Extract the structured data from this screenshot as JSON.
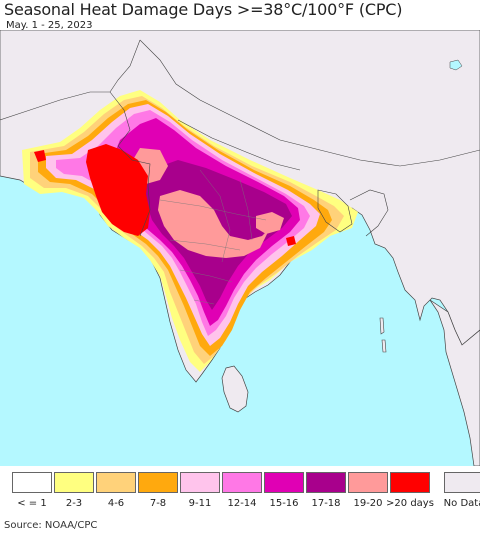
{
  "title": "Seasonal Heat Damage Days >=38°C/100°F (CPC)",
  "subtitle": "May. 1 - 25, 2023",
  "source": "Source: NOAA/CPC",
  "colors": {
    "ocean": "#b4f8ff",
    "land_no_data": "#efeaf0",
    "border": "#444444"
  },
  "legend": [
    {
      "label": "< = 1",
      "color": "#ffffff"
    },
    {
      "label": "2-3",
      "color": "#ffff80"
    },
    {
      "label": "4-6",
      "color": "#ffd27a"
    },
    {
      "label": "7-8",
      "color": "#ffa90e"
    },
    {
      "label": "9-11",
      "color": "#ffc4ec"
    },
    {
      "label": "12-14",
      "color": "#ff78e6"
    },
    {
      "label": "15-16",
      "color": "#e000b4"
    },
    {
      "label": "17-18",
      "color": "#a8008c"
    },
    {
      "label": "19-20",
      "color": "#ff9a9a"
    },
    {
      "label": ">20 days",
      "color": "#ff0000"
    },
    {
      "label": "No Data",
      "color": "#efeaf0"
    }
  ]
}
